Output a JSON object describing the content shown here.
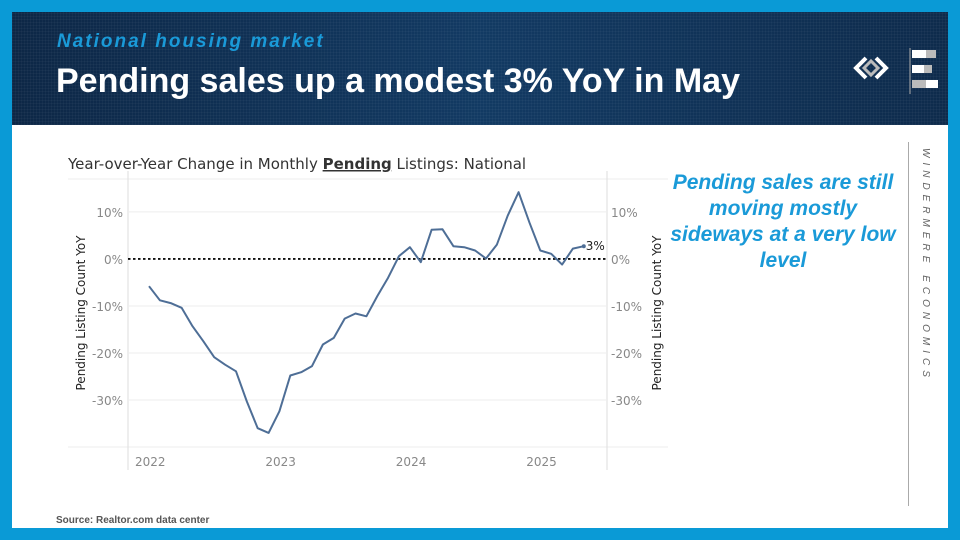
{
  "header": {
    "kicker": "National housing market",
    "title": "Pending sales up a modest 3% YoY in May"
  },
  "callout": "Pending sales are still moving mostly sideways at a very low level",
  "brand": "WINDERMERE ECONOMICS",
  "source": "Source: Realtor.com data center",
  "colors": {
    "frame": "#0a9ad6",
    "accent": "#1a9ad8",
    "line": "#4e6e96",
    "header": "#0f2c4e"
  },
  "chart_data": {
    "type": "line",
    "title_parts": [
      "Year-over-Year Change in Monthly ",
      "Pending",
      " Listings: National"
    ],
    "ylabel": "Pending Listing Count YoY",
    "ylabel_right": "Pending Listing Count YoY",
    "ylim": [
      -40,
      17
    ],
    "yticks": [
      10,
      0,
      -10,
      -20,
      -30
    ],
    "ytick_labels": [
      "10%",
      "0%",
      "-10%",
      "-20%",
      "-30%"
    ],
    "xticks": [
      "2022",
      "2023",
      "2024",
      "2025"
    ],
    "grid": true,
    "reference_line": {
      "y": 0,
      "style": "dotted"
    },
    "end_label": "3%",
    "x_start": "2022-01",
    "x_end": "2025-05",
    "frequency": "monthly",
    "values": [
      -5.8,
      -8.8,
      -9.4,
      -10.4,
      -14.3,
      -17.5,
      -20.9,
      -22.5,
      -23.9,
      -30.3,
      -36.0,
      -37.0,
      -32.4,
      -24.8,
      -24.1,
      -22.8,
      -18.2,
      -16.8,
      -12.7,
      -11.6,
      -12.2,
      -7.9,
      -4.0,
      0.6,
      2.5,
      -0.7,
      6.2,
      6.3,
      2.7,
      2.5,
      1.8,
      0.1,
      3.0,
      9.2,
      14.2,
      7.7,
      1.8,
      1.1,
      -1.2,
      2.2,
      2.7
    ]
  }
}
